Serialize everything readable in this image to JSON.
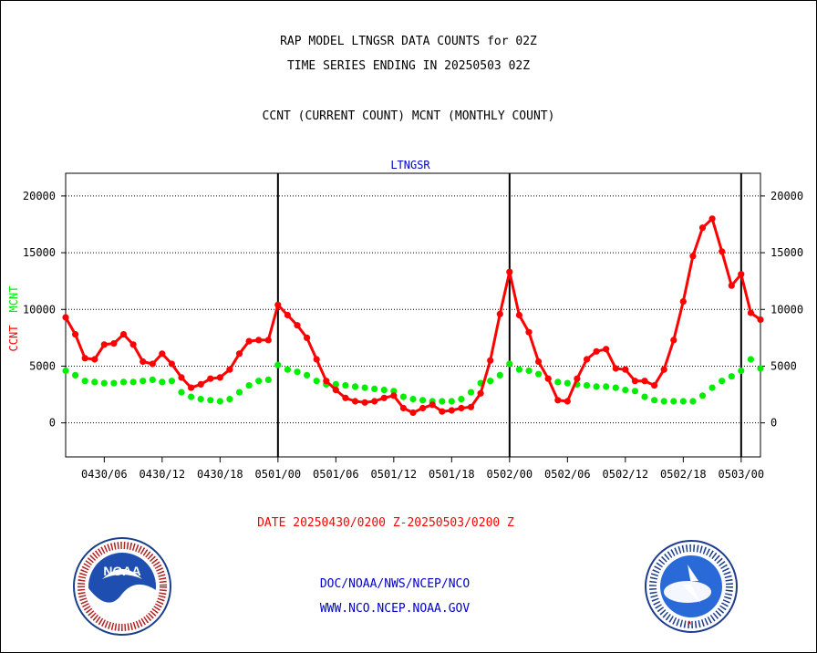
{
  "header": {
    "title_line1": "RAP MODEL LTNGSR DATA COUNTS for 02Z",
    "title_line2": "TIME SERIES ENDING IN 20250503 02Z",
    "subtitle": "CCNT (CURRENT COUNT) MCNT (MONTHLY COUNT)"
  },
  "footer": {
    "date_range": "DATE 20250430/0200 Z-20250503/0200 Z",
    "org_line": "DOC/NOAA/NWS/NCEP/NCO",
    "url_line": "WWW.NCO.NCEP.NOAA.GOV",
    "noaa_logo_text": "NOAA",
    "nws_logo_text": "NATIONAL WEATHER SERVICE"
  },
  "colors": {
    "ccnt": "#ff0000",
    "mcnt": "#00ee00",
    "date_text": "#ff0000",
    "footer_text": "#0000cc",
    "plot_title": "#0000cc"
  },
  "chart_data": {
    "type": "line",
    "title": "LTNGSR",
    "xlabel": "",
    "ylabel_series": [
      "CCNT",
      "MCNT"
    ],
    "ylim": [
      -3000,
      22000
    ],
    "yticks": [
      0,
      5000,
      10000,
      15000,
      20000
    ],
    "y_tick_labels": [
      "0",
      "5000",
      "10000",
      "15000",
      "20000"
    ],
    "grid": "horizontal dotted",
    "x_unit": "hours from 0430/02",
    "x_tick_hours": [
      4,
      10,
      16,
      22,
      28,
      34,
      40,
      46,
      52,
      58,
      64,
      70
    ],
    "x_tick_labels": [
      "0430/06",
      "0430/12",
      "0430/18",
      "0501/00",
      "0501/06",
      "0501/12",
      "0501/18",
      "0502/00",
      "0502/06",
      "0502/12",
      "0502/18",
      "0503/00"
    ],
    "day_boundaries_hours": [
      22,
      46,
      70
    ],
    "x": [
      0,
      1,
      2,
      3,
      4,
      5,
      6,
      7,
      8,
      9,
      10,
      11,
      12,
      13,
      14,
      15,
      16,
      17,
      18,
      19,
      20,
      21,
      22,
      23,
      24,
      25,
      26,
      27,
      28,
      29,
      30,
      31,
      32,
      33,
      34,
      35,
      36,
      37,
      38,
      39,
      40,
      41,
      42,
      43,
      44,
      45,
      46,
      47,
      48,
      49,
      50,
      51,
      52,
      53,
      54,
      55,
      56,
      57,
      58,
      59,
      60,
      61,
      62,
      63,
      64,
      65,
      66,
      67,
      68,
      69,
      70,
      71,
      72
    ],
    "series": [
      {
        "name": "CCNT",
        "values": [
          9300,
          7800,
          5700,
          5600,
          6900,
          7000,
          7800,
          6900,
          5400,
          5200,
          6100,
          5200,
          4000,
          3100,
          3400,
          3900,
          4000,
          4700,
          6100,
          7200,
          7300,
          7300,
          10400,
          9500,
          8600,
          7500,
          5600,
          3700,
          2900,
          2200,
          1900,
          1800,
          1900,
          2200,
          2400,
          1300,
          900,
          1300,
          1600,
          1000,
          1100,
          1300,
          1400,
          2600,
          5500,
          9600,
          13300,
          9500,
          8000,
          5400,
          3900,
          2000,
          1900,
          3900,
          5600,
          6300,
          6500,
          4800,
          4700,
          3700,
          3700,
          3300,
          4700,
          7300,
          10700,
          14700,
          17200,
          18000,
          15100,
          12100,
          13100,
          9700,
          9100
        ]
      },
      {
        "name": "MCNT",
        "values": [
          4600,
          4200,
          3700,
          3600,
          3500,
          3500,
          3600,
          3600,
          3700,
          3800,
          3600,
          3700,
          2700,
          2300,
          2100,
          2000,
          1900,
          2100,
          2700,
          3300,
          3700,
          3800,
          5100,
          4700,
          4500,
          4200,
          3700,
          3400,
          3400,
          3300,
          3200,
          3100,
          3000,
          2900,
          2800,
          2300,
          2100,
          2000,
          1900,
          1900,
          1900,
          2100,
          2700,
          3500,
          3700,
          4200,
          5200,
          4700,
          4600,
          4300,
          3900,
          3600,
          3500,
          3400,
          3300,
          3200,
          3200,
          3100,
          2900,
          2800,
          2300,
          2000,
          1900,
          1900,
          1900,
          1900,
          2400,
          3100,
          3700,
          4100,
          4600,
          5600,
          4800
        ]
      }
    ]
  }
}
